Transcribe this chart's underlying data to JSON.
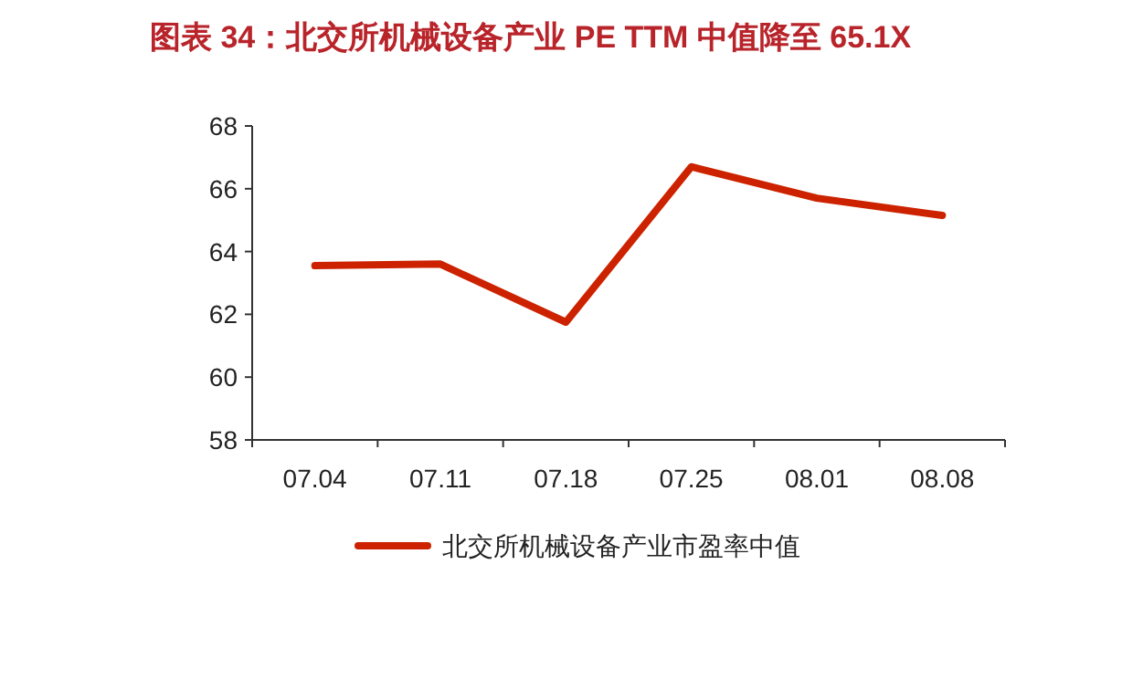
{
  "chart_data": {
    "type": "line",
    "title": "图表 34：北交所机械设备产业 PE TTM 中值降至 65.1X",
    "categories": [
      "07.04",
      "07.11",
      "07.18",
      "07.25",
      "08.01",
      "08.08"
    ],
    "series": [
      {
        "name": "北交所机械设备产业市盈率中值",
        "color": "#cc2200",
        "values": [
          63.55,
          63.6,
          61.75,
          66.7,
          65.7,
          65.15
        ]
      }
    ],
    "ylim": [
      58,
      68
    ],
    "yticks": [
      58,
      60,
      62,
      64,
      66,
      68
    ],
    "grid": false,
    "legend": "bottom",
    "marker": "none",
    "line_style": "solid"
  }
}
